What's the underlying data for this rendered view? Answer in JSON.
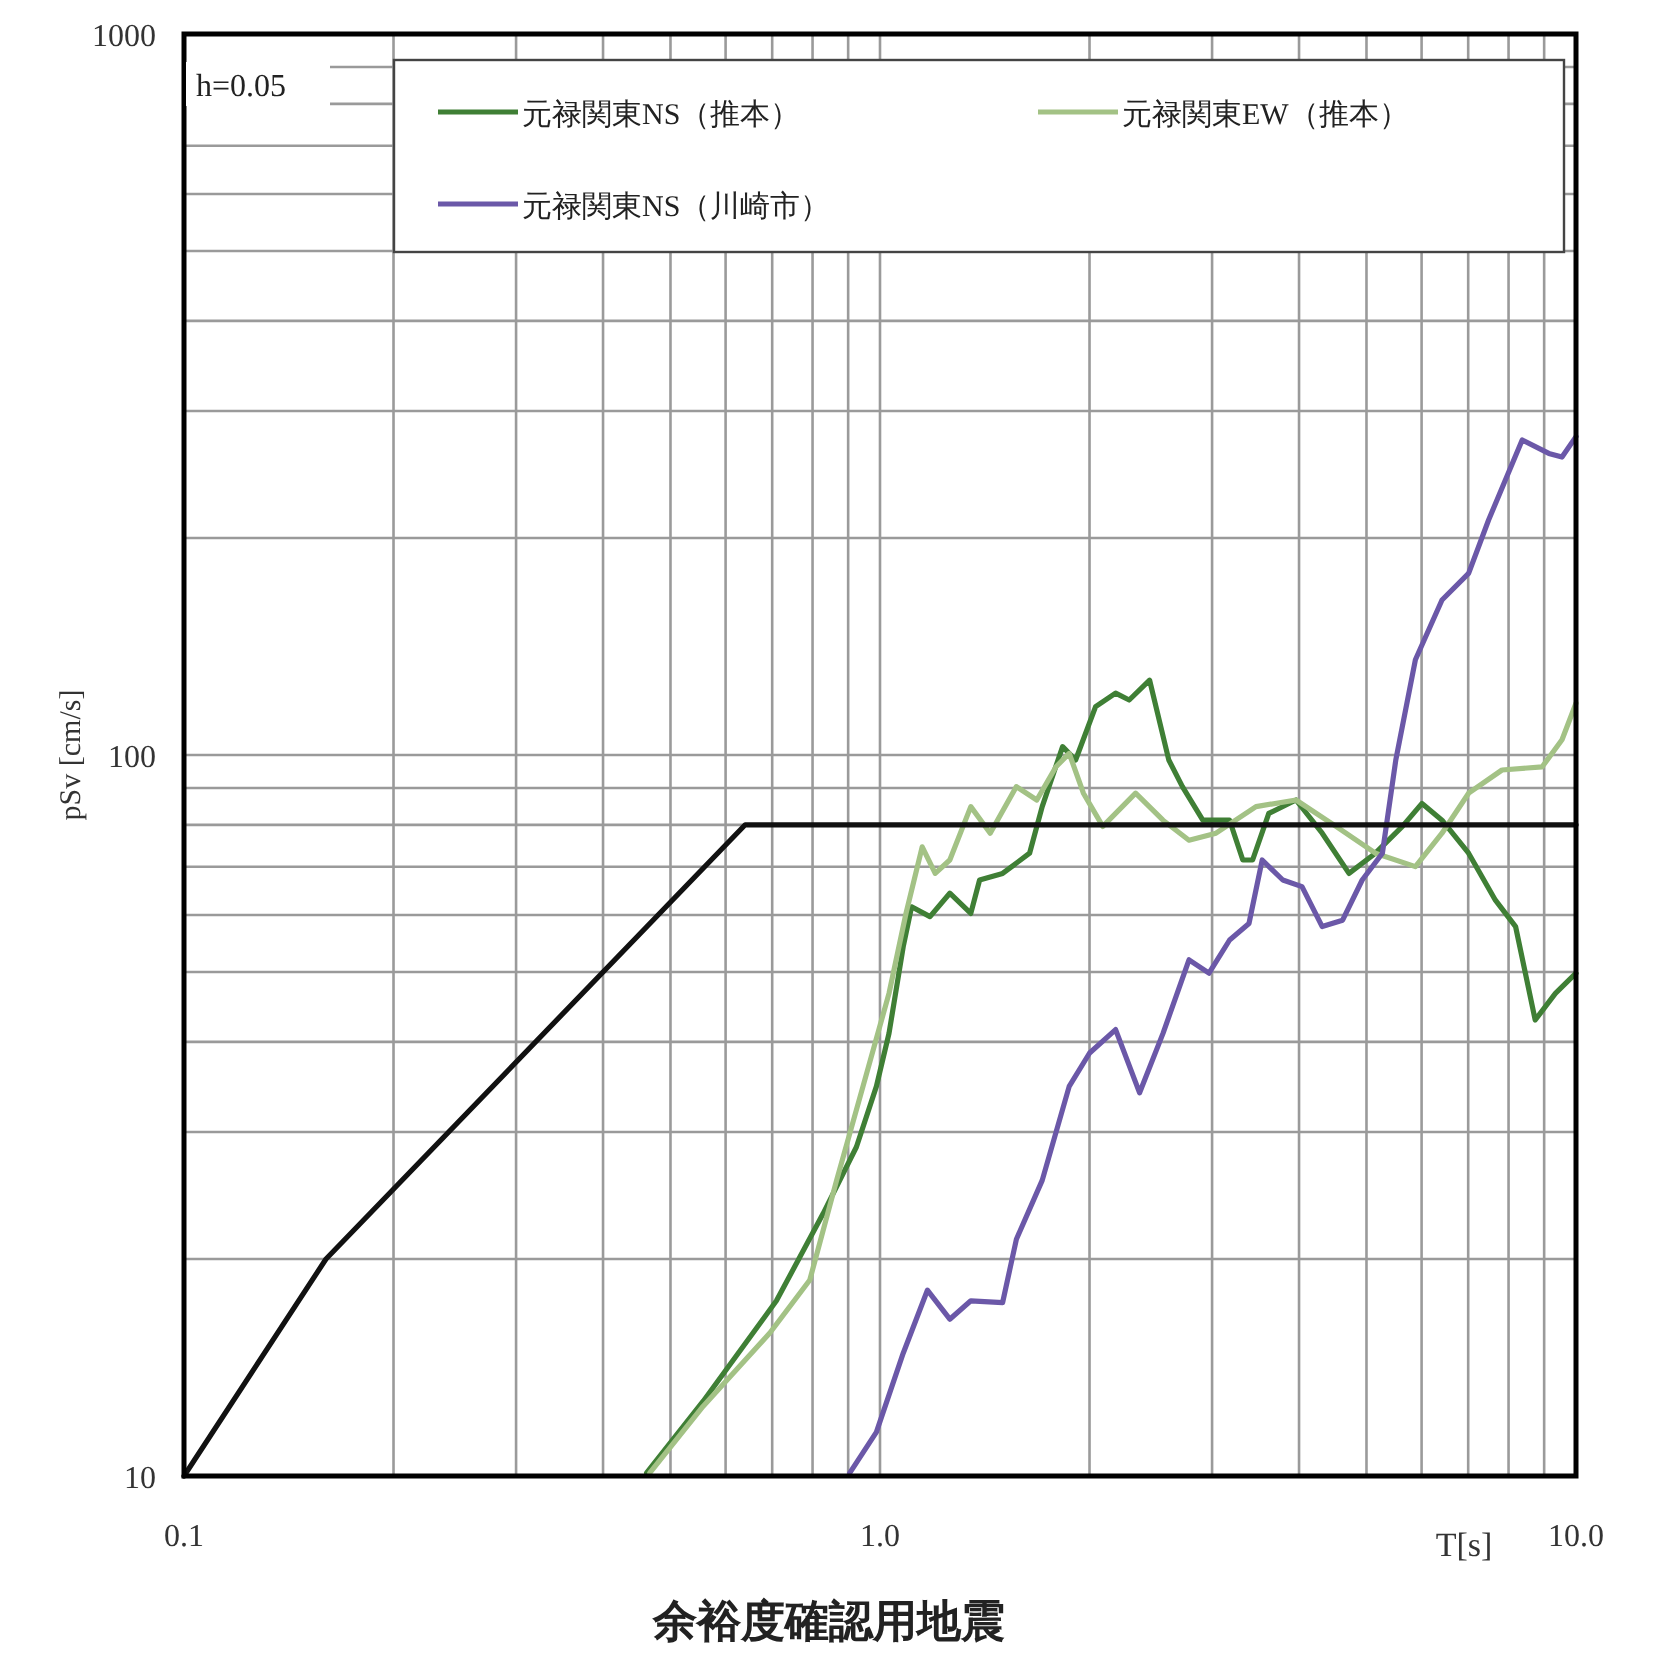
{
  "chart_data": {
    "type": "line",
    "title": "余裕度確認用地震",
    "xlabel": "T[s]",
    "ylabel": "pSv [cm/s]",
    "annotations": [
      "h=0.05"
    ],
    "log": "xy",
    "grid": true,
    "legend": "top",
    "marker": "none",
    "line_style": "solid",
    "xlim": [
      0.1,
      10
    ],
    "ylim": [
      10,
      1000
    ],
    "xticks": [
      {
        "value": 0.1,
        "label": "0.1"
      },
      {
        "value": 0.2,
        "label": null
      },
      {
        "value": 0.3,
        "label": null
      },
      {
        "value": 0.4,
        "label": null
      },
      {
        "value": 0.5,
        "label": null
      },
      {
        "value": 0.6,
        "label": null
      },
      {
        "value": 0.7,
        "label": null
      },
      {
        "value": 0.8,
        "label": null
      },
      {
        "value": 0.9,
        "label": null
      },
      {
        "value": 1,
        "label": "1.0"
      },
      {
        "value": 2,
        "label": null
      },
      {
        "value": 3,
        "label": null
      },
      {
        "value": 4,
        "label": null
      },
      {
        "value": 5,
        "label": null
      },
      {
        "value": 6,
        "label": null
      },
      {
        "value": 7,
        "label": null
      },
      {
        "value": 8,
        "label": null
      },
      {
        "value": 9,
        "label": null
      },
      {
        "value": 10,
        "label": "10.0"
      }
    ],
    "yticks": [
      10,
      {
        "value": 20,
        "label": null
      },
      {
        "value": 30,
        "label": null
      },
      {
        "value": 40,
        "label": null
      },
      {
        "value": 50,
        "label": null
      },
      {
        "value": 60,
        "label": null
      },
      {
        "value": 70,
        "label": null
      },
      {
        "value": 80,
        "label": null
      },
      {
        "value": 90,
        "label": null
      },
      100,
      {
        "value": 200,
        "label": null
      },
      {
        "value": 300,
        "label": null
      },
      {
        "value": 400,
        "label": null
      },
      {
        "value": 500,
        "label": null
      },
      {
        "value": 600,
        "label": null
      },
      {
        "value": 700,
        "label": null
      },
      {
        "value": 800,
        "label": null
      },
      {
        "value": 900,
        "label": null
      },
      1000
    ],
    "series": [
      {
        "name": "元禄関東NS（推本）",
        "color": "#3f7f35",
        "x": [
          0.462,
          0.557,
          0.71,
          0.828,
          0.925,
          0.988,
          1.03,
          1.08,
          1.11,
          1.18,
          1.26,
          1.35,
          1.39,
          1.5,
          1.64,
          1.71,
          1.83,
          1.91,
          2.04,
          2.18,
          2.28,
          2.44,
          2.6,
          2.72,
          2.91,
          3.18,
          3.32,
          3.43,
          3.62,
          3.96,
          4.32,
          4.72,
          5.15,
          5.63,
          6.01,
          6.42,
          7.01,
          7.66,
          8.19,
          8.74,
          9.34,
          10
        ],
        "values": [
          10.1,
          12.7,
          17.5,
          23.1,
          28.6,
          34.7,
          41.1,
          54.2,
          61.6,
          59.7,
          64.3,
          60.3,
          67.1,
          68.5,
          73.1,
          84.8,
          102.7,
          98.4,
          116.7,
          121.8,
          119.2,
          127.0,
          98.4,
          90.4,
          81.2,
          81.2,
          71.5,
          71.5,
          83.0,
          86.6,
          77.9,
          68.5,
          73.1,
          79.6,
          85.7,
          81.2,
          73.1,
          62.9,
          57.8,
          42.9,
          46.7,
          49.8
        ]
      },
      {
        "name": "元禄関東EW（推本）",
        "color": "#a3c285",
        "x": [
          0.467,
          0.557,
          0.695,
          0.793,
          0.866,
          0.945,
          1.03,
          1.09,
          1.15,
          1.2,
          1.26,
          1.35,
          1.44,
          1.57,
          1.68,
          1.79,
          1.87,
          1.96,
          2.09,
          2.33,
          2.55,
          2.78,
          3.04,
          3.47,
          3.96,
          4.52,
          5.15,
          5.88,
          6.42,
          7.01,
          7.83,
          8.94,
          9.55,
          10
        ],
        "values": [
          10.1,
          12.5,
          15.8,
          18.7,
          25.7,
          34.7,
          46.7,
          60.3,
          74.6,
          68.5,
          71.5,
          84.8,
          77.9,
          90.4,
          86.6,
          96.3,
          100.5,
          88.5,
          79.6,
          88.5,
          81.2,
          76.2,
          77.9,
          84.8,
          86.6,
          79.6,
          73.1,
          70.0,
          77.9,
          88.5,
          95.3,
          96.3,
          105,
          118
        ]
      },
      {
        "name": "元禄関東NS（川崎市）",
        "color": "#6b58a8",
        "x": [
          0.905,
          0.988,
          1.08,
          1.17,
          1.26,
          1.35,
          1.5,
          1.57,
          1.71,
          1.87,
          2.0,
          2.18,
          2.36,
          2.55,
          2.78,
          2.97,
          3.18,
          3.39,
          3.54,
          3.79,
          4.04,
          4.32,
          4.62,
          4.93,
          5.27,
          5.51,
          5.88,
          6.42,
          7.01,
          7.49,
          8.37,
          9.14,
          9.55,
          10
        ],
        "values": [
          10.1,
          11.5,
          14.8,
          18.1,
          16.5,
          17.5,
          17.4,
          21.3,
          25.7,
          34.7,
          38.6,
          41.6,
          34.0,
          41.1,
          52.0,
          49.8,
          55.4,
          58.4,
          71.5,
          67.1,
          65.7,
          57.8,
          59.0,
          67.1,
          73.1,
          98.4,
          135.5,
          164,
          178.6,
          211.8,
          273.5,
          262,
          259,
          276.5
        ]
      },
      {
        "color": "#111111",
        "x": [
          0.1,
          0.16,
          0.64,
          10
        ],
        "values": [
          10,
          20,
          80,
          80
        ]
      }
    ]
  }
}
